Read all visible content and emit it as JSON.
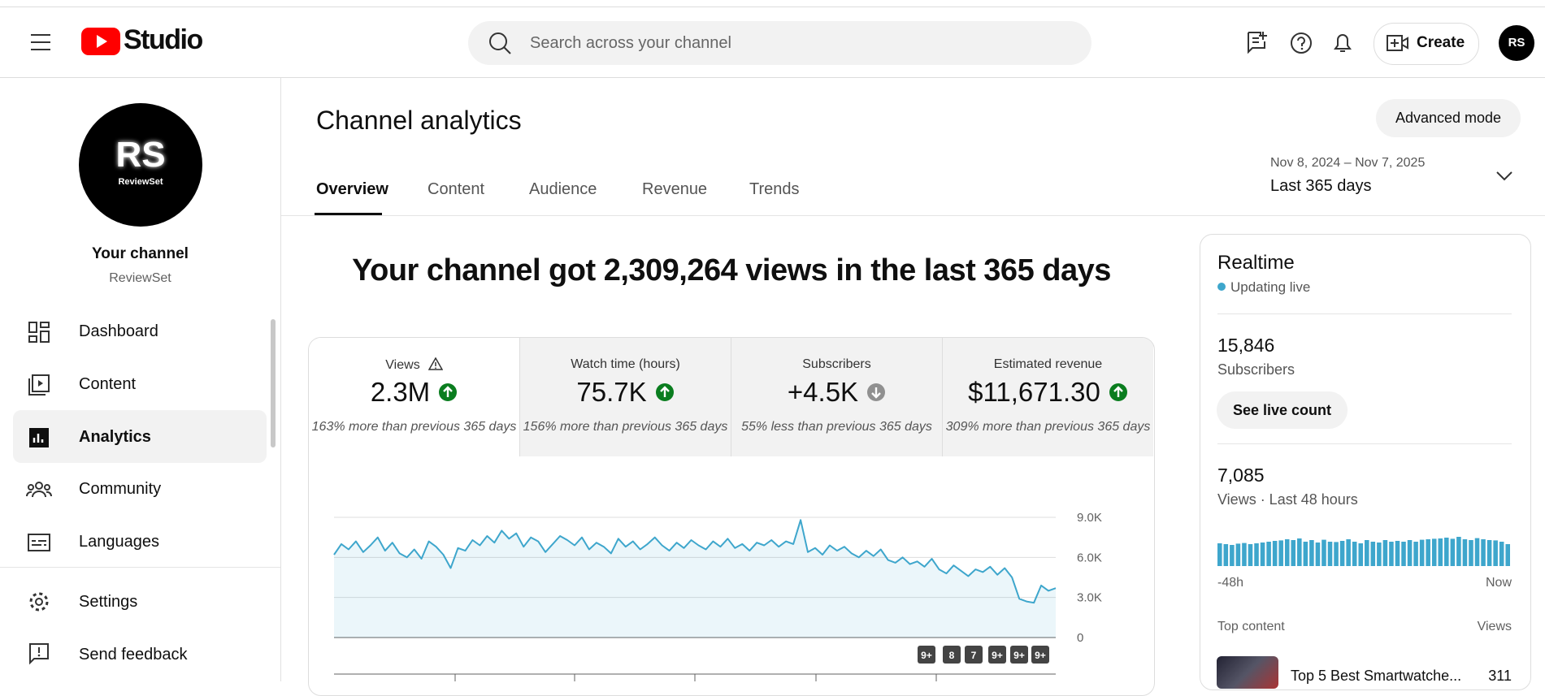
{
  "header": {
    "logo": "Studio",
    "search_placeholder": "Search across your channel",
    "create": "Create",
    "avatar": "RS"
  },
  "sidebar": {
    "avatar": "RS",
    "avatar_sub": "ReviewSet",
    "title": "Your channel",
    "name": "ReviewSet",
    "nav": [
      "Dashboard",
      "Content",
      "Analytics",
      "Community",
      "Languages"
    ],
    "footer": [
      "Settings",
      "Send feedback"
    ]
  },
  "page": {
    "title": "Channel analytics",
    "advanced_mode": "Advanced mode",
    "date_range": "Nov 8, 2024 – Nov 7, 2025",
    "period": "Last 365 days",
    "tabs": [
      "Overview",
      "Content",
      "Audience",
      "Revenue",
      "Trends"
    ]
  },
  "summary": {
    "headline": "Your channel got 2,309,264 views in the last 365 days"
  },
  "metrics": [
    {
      "label": "Views",
      "value": "2.3M",
      "trend": "up",
      "comparison": "163% more than previous 365 days"
    },
    {
      "label": "Watch time (hours)",
      "value": "75.7K",
      "trend": "up",
      "comparison": "156% more than previous 365 days"
    },
    {
      "label": "Subscribers",
      "value": "+4.5K",
      "trend": "down",
      "comparison": "55% less than previous 365 days"
    },
    {
      "label": "Estimated revenue",
      "value": "$11,671.30",
      "trend": "up",
      "comparison": "309% more than previous 365 days"
    }
  ],
  "chart": {
    "type": "line",
    "color": "#3ea6cc",
    "ylim": [
      0,
      9000
    ],
    "yticks": [
      0,
      {
        "value": 3000,
        "label": "3.0K"
      },
      {
        "value": 6000,
        "label": "6.0K"
      },
      {
        "value": 9000,
        "label": "9.0K"
      }
    ],
    "values": [
      6200,
      7000,
      6600,
      7200,
      6400,
      6900,
      7500,
      6500,
      7100,
      6300,
      6000,
      6600,
      5900,
      7200,
      6800,
      6200,
      5200,
      6700,
      6500,
      7300,
      6900,
      7600,
      7100,
      8000,
      7400,
      7800,
      6800,
      7500,
      7200,
      6400,
      7000,
      7600,
      7300,
      6900,
      7500,
      6600,
      7100,
      6800,
      6300,
      7400,
      6800,
      7200,
      6600,
      7000,
      7500,
      6900,
      6500,
      7100,
      6700,
      7300,
      6900,
      6600,
      7200,
      6800,
      7400,
      6700,
      7000,
      6500,
      7100,
      6900,
      7300,
      6800,
      7200,
      7000,
      8800,
      6400,
      6700,
      6200,
      6900,
      6500,
      6800,
      6300,
      6000,
      6500,
      6100,
      6600,
      5800,
      5600,
      6000,
      5500,
      5700,
      5300,
      5900,
      5100,
      4800,
      5400,
      5000,
      4600,
      5100,
      4900,
      5300,
      4700,
      5200,
      4500,
      2900,
      2700,
      2600,
      3900,
      3500,
      3700
    ],
    "badges": [
      "9+",
      "8",
      "7",
      "9+",
      "9+",
      "9+"
    ]
  },
  "realtime": {
    "title": "Realtime",
    "status": "Updating live",
    "subscribers": "15,846",
    "subscribers_label": "Subscribers",
    "live_button": "See live count",
    "views": "7,085",
    "views_label": "Views · Last 48 hours",
    "bars": [
      140,
      135,
      130,
      138,
      142,
      135,
      140,
      145,
      150,
      155,
      158,
      165,
      160,
      170,
      150,
      160,
      145,
      162,
      150,
      148,
      155,
      165,
      150,
      140,
      160,
      150,
      145,
      160,
      150,
      155,
      150,
      160,
      150,
      162,
      165,
      168,
      170,
      175,
      168,
      180,
      165,
      160,
      172,
      165,
      160,
      158,
      150,
      135
    ],
    "bar_color": "#3ea6cc",
    "start_label": "-48h",
    "end_label": "Now",
    "top_content": "Top content",
    "top_content_metric": "Views",
    "top_item": "Top 5 Best Smartwatche...",
    "top_item_views": 311
  }
}
